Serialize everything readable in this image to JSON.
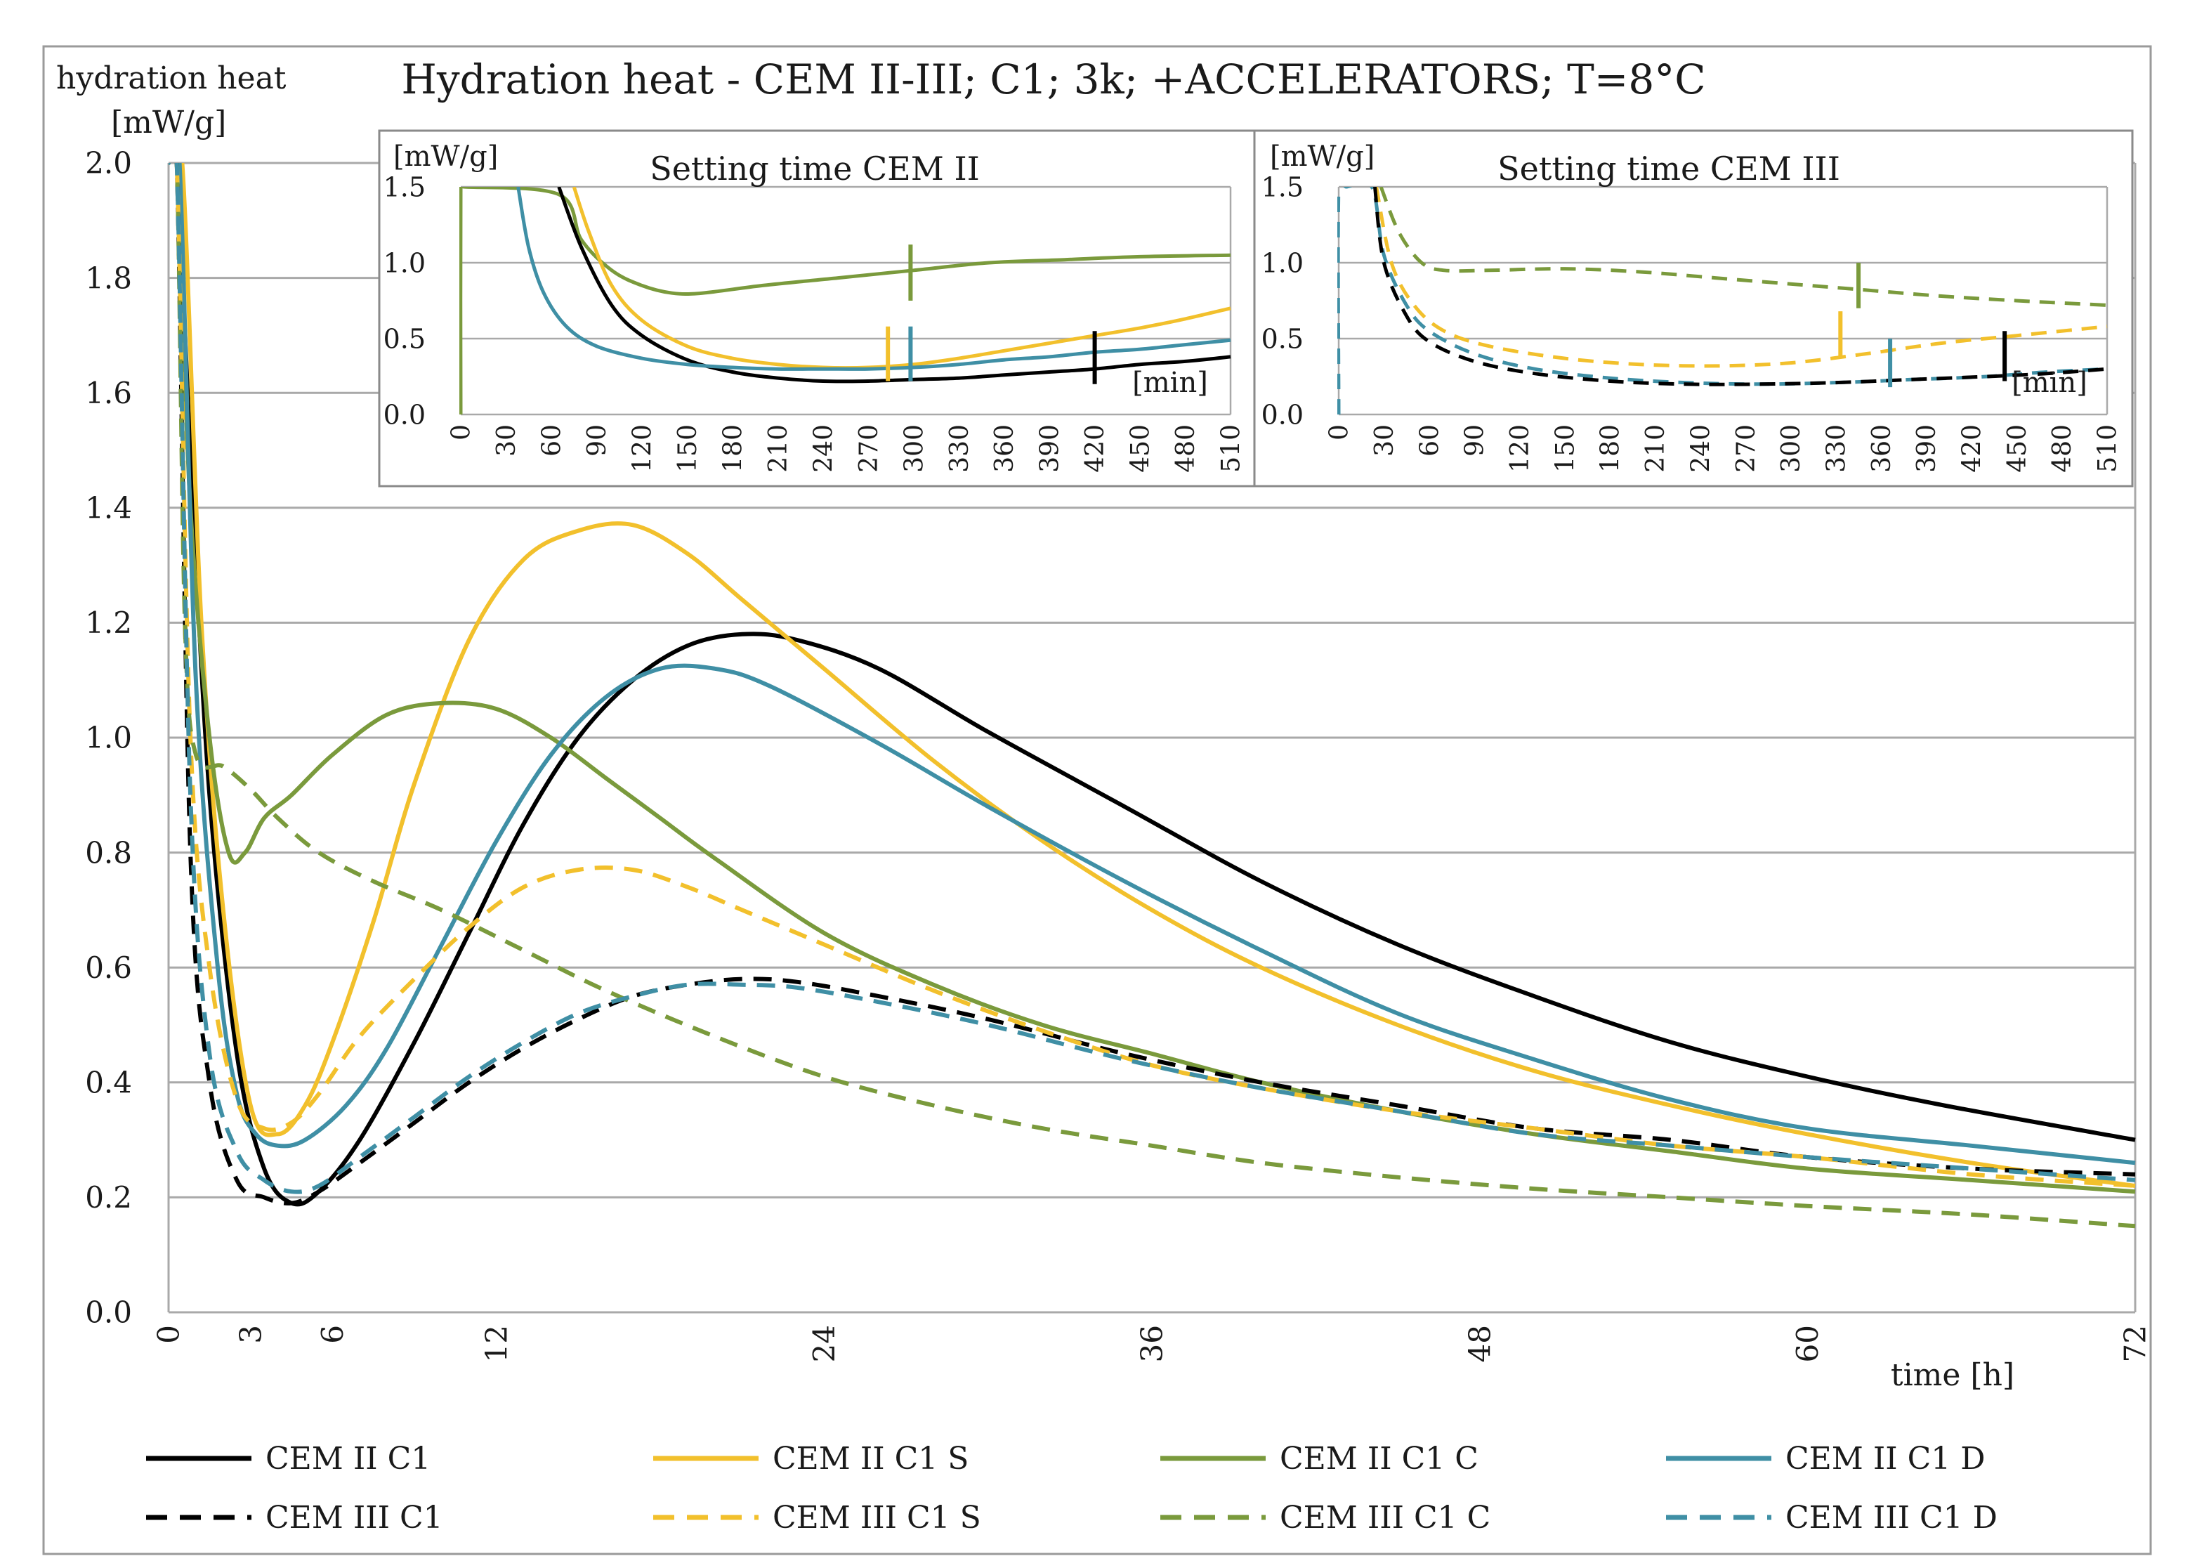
{
  "chart_data": [
    {
      "id": "main",
      "type": "line",
      "title": "Hydration heat - CEM II-III; C1; 3k; +ACCELERATORS; T=8°C",
      "ylabel_line1": "hydration heat",
      "ylabel_line2": "[mW/g]",
      "xlabel": "time [h]",
      "xlim": [
        0,
        72
      ],
      "ylim": [
        0,
        2.0
      ],
      "xticks": [
        0,
        3,
        6,
        12,
        24,
        36,
        48,
        60,
        72
      ],
      "yticks": [
        0.0,
        0.2,
        0.4,
        0.6,
        0.8,
        1.0,
        1.2,
        1.4,
        1.6,
        1.8,
        2.0
      ],
      "ytick_labels": [
        "0.0",
        "0.2",
        "0.4",
        "0.6",
        "0.8",
        "1.0",
        "1.2",
        "1.4",
        "1.6",
        "1.8",
        "2.0"
      ],
      "grid": "horizontal",
      "legend_position": "bottom",
      "series": [
        {
          "name": "CEM II C1",
          "color": "#000000",
          "dash": false,
          "x": [
            0.0,
            0.3,
            0.8,
            1.5,
            2.5,
            3.5,
            4.5,
            5.5,
            7,
            9,
            11,
            13,
            15,
            17,
            19,
            21,
            23,
            26,
            30,
            35,
            40,
            45,
            50,
            55,
            60,
            65,
            72
          ],
          "y": [
            2.0,
            2.0,
            1.5,
            0.9,
            0.45,
            0.25,
            0.19,
            0.21,
            0.3,
            0.47,
            0.66,
            0.85,
            1.0,
            1.1,
            1.16,
            1.18,
            1.17,
            1.12,
            1.01,
            0.88,
            0.75,
            0.64,
            0.55,
            0.47,
            0.41,
            0.36,
            0.3
          ]
        },
        {
          "name": "CEM II C1 S",
          "color": "#f2c02c",
          "dash": false,
          "x": [
            0.0,
            0.5,
            1.2,
            2.0,
            3.0,
            4.0,
            5.0,
            6.0,
            7.5,
            9,
            11,
            13,
            15,
            17,
            19,
            21,
            24,
            28,
            32,
            36,
            40,
            45,
            50,
            55,
            60,
            66,
            72
          ],
          "y": [
            2.0,
            2.0,
            1.2,
            0.7,
            0.36,
            0.31,
            0.36,
            0.47,
            0.68,
            0.92,
            1.17,
            1.31,
            1.36,
            1.37,
            1.32,
            1.24,
            1.12,
            0.96,
            0.82,
            0.7,
            0.6,
            0.5,
            0.42,
            0.36,
            0.31,
            0.26,
            0.22
          ]
        },
        {
          "name": "CEM II C1 C",
          "color": "#7a9a3c",
          "dash": false,
          "x": [
            0.0,
            0.3,
            0.8,
            1.5,
            2.2,
            2.8,
            3.5,
            4.5,
            6,
            8,
            10,
            12,
            14,
            16,
            18,
            20,
            24,
            28,
            32,
            36,
            40,
            45,
            50,
            55,
            60,
            66,
            72
          ],
          "y": [
            2.0,
            2.0,
            1.4,
            1.0,
            0.8,
            0.8,
            0.86,
            0.9,
            0.97,
            1.04,
            1.06,
            1.05,
            1.0,
            0.93,
            0.86,
            0.79,
            0.66,
            0.57,
            0.5,
            0.45,
            0.4,
            0.35,
            0.31,
            0.28,
            0.25,
            0.23,
            0.21
          ]
        },
        {
          "name": "CEM II C1 D",
          "color": "#3f8fa5",
          "dash": false,
          "x": [
            0.0,
            0.4,
            1.0,
            1.8,
            2.5,
            3.2,
            4.0,
            5.0,
            6.5,
            8,
            10,
            12,
            14,
            16,
            18,
            20,
            22,
            26,
            30,
            35,
            40,
            45,
            50,
            55,
            60,
            66,
            72
          ],
          "y": [
            2.0,
            2.0,
            1.1,
            0.6,
            0.38,
            0.31,
            0.29,
            0.3,
            0.36,
            0.46,
            0.64,
            0.82,
            0.97,
            1.07,
            1.12,
            1.12,
            1.09,
            0.99,
            0.88,
            0.75,
            0.63,
            0.52,
            0.44,
            0.37,
            0.32,
            0.29,
            0.26
          ]
        },
        {
          "name": "CEM III C1",
          "color": "#000000",
          "dash": true,
          "x": [
            0.0,
            0.3,
            0.8,
            1.5,
            2.5,
            3.5,
            4.5,
            5.5,
            7,
            9,
            11,
            13,
            15,
            17,
            19,
            21,
            23,
            26,
            30,
            35,
            40,
            45,
            50,
            55,
            60,
            66,
            72
          ],
          "y": [
            2.0,
            2.0,
            0.8,
            0.4,
            0.23,
            0.2,
            0.19,
            0.21,
            0.26,
            0.33,
            0.4,
            0.46,
            0.51,
            0.55,
            0.57,
            0.58,
            0.575,
            0.55,
            0.51,
            0.45,
            0.4,
            0.36,
            0.32,
            0.3,
            0.27,
            0.25,
            0.24
          ]
        },
        {
          "name": "CEM III C1 S",
          "color": "#f2c02c",
          "dash": true,
          "x": [
            0.0,
            0.3,
            0.8,
            1.5,
            2.5,
            3.5,
            4.5,
            5.5,
            7,
            9,
            11,
            13,
            15,
            17,
            19,
            21,
            24,
            28,
            32,
            36,
            40,
            45,
            50,
            55,
            60,
            66,
            72
          ],
          "y": [
            2.0,
            2.0,
            1.0,
            0.6,
            0.37,
            0.32,
            0.33,
            0.38,
            0.48,
            0.58,
            0.67,
            0.74,
            0.77,
            0.77,
            0.74,
            0.7,
            0.64,
            0.56,
            0.49,
            0.43,
            0.39,
            0.35,
            0.32,
            0.29,
            0.27,
            0.24,
            0.22
          ]
        },
        {
          "name": "CEM III C1 C",
          "color": "#7a9a3c",
          "dash": true,
          "x": [
            0.0,
            0.3,
            0.6,
            1.0,
            2.0,
            3.0,
            4.0,
            5.5,
            7.5,
            10,
            13,
            16,
            20,
            24,
            28,
            32,
            36,
            40,
            45,
            50,
            55,
            60,
            66,
            72
          ],
          "y": [
            2.0,
            2.0,
            1.2,
            0.97,
            0.95,
            0.91,
            0.86,
            0.8,
            0.75,
            0.7,
            0.63,
            0.56,
            0.48,
            0.41,
            0.36,
            0.32,
            0.29,
            0.26,
            0.235,
            0.215,
            0.2,
            0.185,
            0.17,
            0.15
          ]
        },
        {
          "name": "CEM III C1 D",
          "color": "#3f8fa5",
          "dash": true,
          "x": [
            0.0,
            0.3,
            0.8,
            1.5,
            2.5,
            3.5,
            4.5,
            5.5,
            7,
            9,
            11,
            13,
            15,
            17,
            19,
            21,
            23,
            26,
            30,
            35,
            40,
            45,
            50,
            55,
            60,
            66,
            72
          ],
          "y": [
            2.0,
            2.0,
            0.9,
            0.45,
            0.28,
            0.23,
            0.21,
            0.22,
            0.27,
            0.34,
            0.41,
            0.47,
            0.52,
            0.55,
            0.57,
            0.57,
            0.565,
            0.54,
            0.5,
            0.44,
            0.39,
            0.35,
            0.31,
            0.29,
            0.27,
            0.25,
            0.23
          ]
        }
      ]
    },
    {
      "id": "inset-cem2",
      "type": "line",
      "title": "Setting time CEM II",
      "ylabel": "[mW/g]",
      "xlabel": "[min]",
      "xlim": [
        0,
        510
      ],
      "ylim": [
        0,
        1.5
      ],
      "xticks": [
        0,
        30,
        60,
        90,
        120,
        150,
        180,
        210,
        240,
        270,
        300,
        330,
        360,
        390,
        420,
        450,
        480,
        510
      ],
      "yticks": [
        0.0,
        0.5,
        1.0,
        1.5
      ],
      "ytick_labels": [
        "0.0",
        "0.5",
        "1.0",
        "1.5"
      ],
      "series": [
        {
          "name": "CEM II C1 C",
          "color": "#7a9a3c",
          "dash": false,
          "x": [
            0,
            0,
            2,
            65,
            80,
            100,
            120,
            140,
            160,
            200,
            250,
            300,
            350,
            400,
            450,
            510
          ],
          "y": [
            0,
            1.5,
            1.5,
            1.45,
            1.15,
            0.95,
            0.85,
            0.8,
            0.8,
            0.85,
            0.9,
            0.95,
            1.0,
            1.02,
            1.04,
            1.05
          ]
        },
        {
          "name": "CEM II C1 S",
          "color": "#f2c02c",
          "dash": false,
          "x": [
            75,
            85,
            100,
            120,
            150,
            180,
            210,
            240,
            270,
            300,
            330,
            360,
            390,
            420,
            450,
            480,
            510
          ],
          "y": [
            1.5,
            1.2,
            0.85,
            0.62,
            0.45,
            0.37,
            0.33,
            0.31,
            0.31,
            0.33,
            0.37,
            0.42,
            0.47,
            0.52,
            0.57,
            0.63,
            0.7
          ]
        },
        {
          "name": "CEM II C1",
          "color": "#000000",
          "dash": false,
          "x": [
            65,
            80,
            100,
            120,
            150,
            180,
            210,
            240,
            270,
            300,
            330,
            360,
            390,
            420,
            450,
            480,
            510
          ],
          "y": [
            1.5,
            1.1,
            0.72,
            0.52,
            0.36,
            0.28,
            0.24,
            0.22,
            0.22,
            0.23,
            0.24,
            0.26,
            0.28,
            0.3,
            0.33,
            0.35,
            0.38
          ]
        },
        {
          "name": "CEM II C1 D",
          "color": "#3f8fa5",
          "dash": false,
          "x": [
            38,
            45,
            55,
            70,
            90,
            120,
            150,
            180,
            210,
            240,
            270,
            300,
            330,
            360,
            390,
            420,
            450,
            480,
            510
          ],
          "y": [
            1.5,
            1.1,
            0.8,
            0.58,
            0.45,
            0.37,
            0.33,
            0.31,
            0.3,
            0.3,
            0.3,
            0.31,
            0.33,
            0.36,
            0.38,
            0.41,
            0.43,
            0.46,
            0.49
          ]
        }
      ],
      "setting_marks": [
        {
          "series": "CEM II C1 C",
          "color": "#7a9a3c",
          "x": 298,
          "y0": 0.75,
          "y1": 1.12
        },
        {
          "series": "CEM II C1 S",
          "color": "#f2c02c",
          "x": 283,
          "y0": 0.22,
          "y1": 0.58
        },
        {
          "series": "CEM II C1 D",
          "color": "#3f8fa5",
          "x": 298,
          "y0": 0.22,
          "y1": 0.58
        },
        {
          "series": "CEM II C1",
          "color": "#000000",
          "x": 420,
          "y0": 0.2,
          "y1": 0.55
        }
      ]
    },
    {
      "id": "inset-cem3",
      "type": "line",
      "title": "Setting time CEM III",
      "ylabel": "[mW/g]",
      "xlabel": "[min]",
      "xlim": [
        0,
        510
      ],
      "ylim": [
        0,
        1.5
      ],
      "xticks": [
        0,
        30,
        60,
        90,
        120,
        150,
        180,
        210,
        240,
        270,
        300,
        330,
        360,
        390,
        420,
        450,
        480,
        510
      ],
      "yticks": [
        0.0,
        0.5,
        1.0,
        1.5
      ],
      "ytick_labels": [
        "0.0",
        "0.5",
        "1.0",
        "1.5"
      ],
      "series": [
        {
          "name": "CEM III C1 C",
          "color": "#7a9a3c",
          "dash": true,
          "x": [
            28,
            40,
            55,
            70,
            100,
            150,
            200,
            250,
            300,
            350,
            400,
            450,
            510
          ],
          "y": [
            1.5,
            1.2,
            1.0,
            0.95,
            0.95,
            0.96,
            0.94,
            0.9,
            0.86,
            0.82,
            0.78,
            0.75,
            0.72
          ]
        },
        {
          "name": "CEM III C1 S",
          "color": "#f2c02c",
          "dash": true,
          "x": [
            25,
            35,
            50,
            70,
            100,
            150,
            200,
            250,
            300,
            350,
            400,
            450,
            510
          ],
          "y": [
            1.5,
            1.0,
            0.72,
            0.55,
            0.45,
            0.37,
            0.33,
            0.32,
            0.34,
            0.4,
            0.47,
            0.52,
            0.58
          ]
        },
        {
          "name": "CEM III C1 D",
          "color": "#3f8fa5",
          "dash": true,
          "x": [
            0,
            0,
            5,
            22,
            30,
            45,
            60,
            90,
            130,
            180,
            230,
            280,
            330,
            380,
            430,
            470,
            510
          ],
          "y": [
            0,
            1.5,
            1.5,
            1.5,
            1.05,
            0.72,
            0.55,
            0.4,
            0.3,
            0.24,
            0.21,
            0.2,
            0.21,
            0.23,
            0.25,
            0.28,
            0.3
          ]
        },
        {
          "name": "CEM III C1",
          "color": "#000000",
          "dash": true,
          "x": [
            24,
            30,
            45,
            60,
            90,
            130,
            180,
            230,
            280,
            330,
            380,
            430,
            470,
            510
          ],
          "y": [
            1.5,
            1.0,
            0.65,
            0.48,
            0.35,
            0.27,
            0.22,
            0.2,
            0.2,
            0.21,
            0.23,
            0.25,
            0.27,
            0.3
          ]
        }
      ],
      "setting_marks": [
        {
          "series": "CEM III C1 C",
          "color": "#7a9a3c",
          "x": 345,
          "y0": 0.7,
          "y1": 1.0
        },
        {
          "series": "CEM III C1 S",
          "color": "#f2c02c",
          "x": 333,
          "y0": 0.38,
          "y1": 0.68
        },
        {
          "series": "CEM III C1 D",
          "color": "#3f8fa5",
          "x": 366,
          "y0": 0.18,
          "y1": 0.5
        },
        {
          "series": "CEM III C1",
          "color": "#000000",
          "x": 442,
          "y0": 0.22,
          "y1": 0.55
        }
      ]
    }
  ]
}
